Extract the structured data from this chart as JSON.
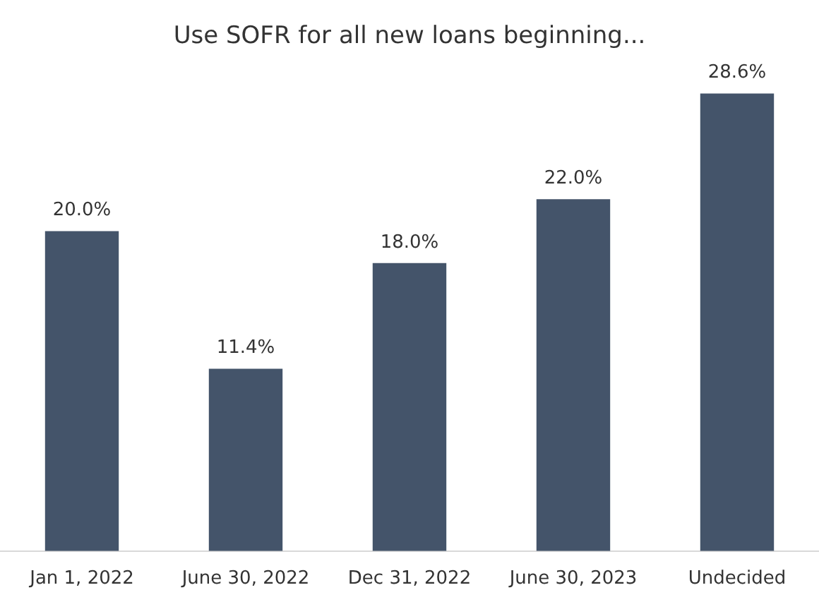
{
  "chart_data": {
    "type": "bar",
    "title": "Use SOFR for all new loans beginning...",
    "categories": [
      "Jan 1, 2022",
      "June 30, 2022",
      "Dec 31, 2022",
      "June 30, 2023",
      "Undecided"
    ],
    "values": [
      20.0,
      11.4,
      18.0,
      22.0,
      28.6
    ],
    "value_labels": [
      "20.0%",
      "11.4%",
      "18.0%",
      "22.0%",
      "28.6%"
    ],
    "color": "#44546a"
  }
}
